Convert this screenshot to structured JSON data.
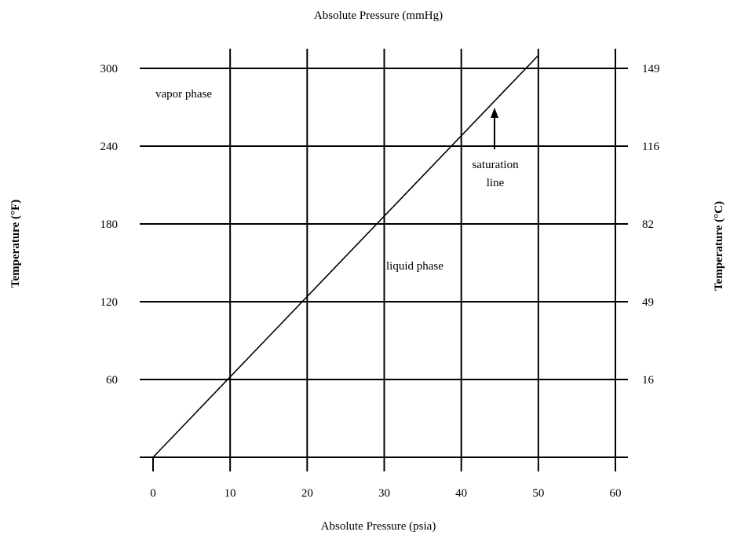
{
  "chart_data": {
    "type": "line",
    "top_xlabel": "Absolute Pressure (mmHg)",
    "xlabel": "Absolute Pressure (psia)",
    "ylabel_left": "Temperature (°F)",
    "ylabel_right": "Temperature (°C)",
    "xlim": [
      0,
      60
    ],
    "ylim": [
      0,
      300
    ],
    "x_ticks": [
      "0",
      "10",
      "20",
      "30",
      "40",
      "50",
      "60"
    ],
    "y_ticks_left": [
      "60",
      "120",
      "180",
      "240",
      "300"
    ],
    "y_ticks_right": [
      "16",
      "49",
      "82",
      "116",
      "149"
    ],
    "grid": true,
    "series": [
      {
        "x": [
          0,
          50
        ],
        "y": [
          0,
          310
        ]
      }
    ],
    "annotations": {
      "vapor": "vapor phase",
      "liquid": "liquid phase",
      "saturation_1": "saturation",
      "saturation_2": "line"
    }
  }
}
